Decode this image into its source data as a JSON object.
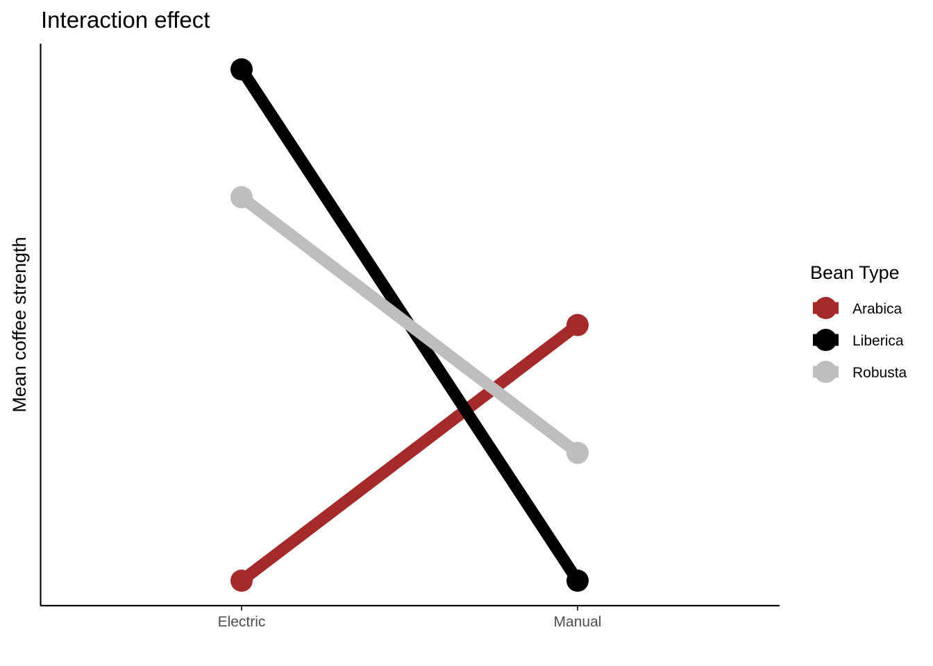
{
  "chart_data": {
    "type": "line",
    "title": "Interaction effect",
    "xlabel": "",
    "ylabel": "Mean coffee strength",
    "categories": [
      "Electric",
      "Manual"
    ],
    "ylim": [
      0,
      4
    ],
    "y_tick_labels": false,
    "grid": false,
    "legend": {
      "title": "Bean Type",
      "placement": "right"
    },
    "series": [
      {
        "name": "Arabica",
        "color": "#A52A2A",
        "values": [
          0,
          2
        ]
      },
      {
        "name": "Liberica",
        "color": "#000000",
        "values": [
          4,
          0
        ]
      },
      {
        "name": "Robusta",
        "color": "#BEBEBE",
        "values": [
          3,
          1
        ]
      }
    ]
  }
}
